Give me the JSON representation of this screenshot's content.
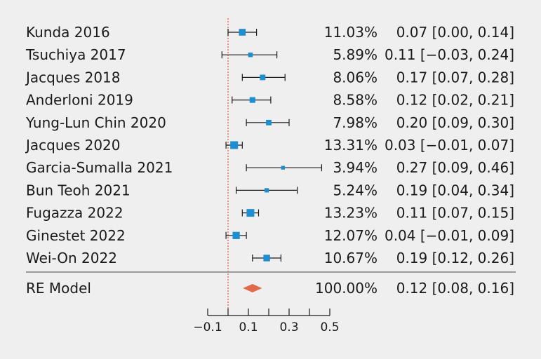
{
  "chart_data": {
    "type": "forest",
    "x_range": [
      -0.1,
      0.5
    ],
    "reference_line": 0,
    "axis_ticks": [
      -0.1,
      0.1,
      0.3,
      0.5
    ],
    "axis_tick_labels": [
      "−0.1",
      "0.1",
      "0.3",
      "0.5"
    ],
    "colors": {
      "study_marker": "#1b8fd2",
      "pooled_diamond": "#e06a4a",
      "reference_line": "#e2553b",
      "separator": "#9a9a9a",
      "text": "#1a1a1a"
    },
    "studies": [
      {
        "label": "Kunda 2016",
        "weight_label": "11.03%",
        "ci_label": "0.07 [0.00, 0.14]",
        "weight": 11.03,
        "estimate": 0.07,
        "lower": 0.0,
        "upper": 0.14
      },
      {
        "label": "Tsuchiya 2017",
        "weight_label": "5.89%",
        "ci_label": "0.11 [−0.03, 0.24]",
        "weight": 5.89,
        "estimate": 0.11,
        "lower": -0.03,
        "upper": 0.24
      },
      {
        "label": "Jacques 2018",
        "weight_label": "8.06%",
        "ci_label": "0.17 [0.07, 0.28]",
        "weight": 8.06,
        "estimate": 0.17,
        "lower": 0.07,
        "upper": 0.28
      },
      {
        "label": "Anderloni 2019",
        "weight_label": "8.58%",
        "ci_label": "0.12 [0.02, 0.21]",
        "weight": 8.58,
        "estimate": 0.12,
        "lower": 0.02,
        "upper": 0.21
      },
      {
        "label": "Yung-Lun Chin 2020",
        "weight_label": "7.98%",
        "ci_label": "0.20 [0.09, 0.30]",
        "weight": 7.98,
        "estimate": 0.2,
        "lower": 0.09,
        "upper": 0.3
      },
      {
        "label": "Jacques 2020",
        "weight_label": "13.31%",
        "ci_label": "0.03 [−0.01, 0.07]",
        "weight": 13.31,
        "estimate": 0.03,
        "lower": -0.01,
        "upper": 0.07
      },
      {
        "label": "Garcia-Sumalla 2021",
        "weight_label": "3.94%",
        "ci_label": "0.27 [0.09, 0.46]",
        "weight": 3.94,
        "estimate": 0.27,
        "lower": 0.09,
        "upper": 0.46
      },
      {
        "label": "Bun Teoh 2021",
        "weight_label": "5.24%",
        "ci_label": "0.19 [0.04, 0.34]",
        "weight": 5.24,
        "estimate": 0.19,
        "lower": 0.04,
        "upper": 0.34
      },
      {
        "label": "Fugazza 2022",
        "weight_label": "13.23%",
        "ci_label": "0.11 [0.07, 0.15]",
        "weight": 13.23,
        "estimate": 0.11,
        "lower": 0.07,
        "upper": 0.15
      },
      {
        "label": "Ginestet 2022",
        "weight_label": "12.07%",
        "ci_label": "0.04 [−0.01, 0.09]",
        "weight": 12.07,
        "estimate": 0.04,
        "lower": -0.01,
        "upper": 0.09
      },
      {
        "label": "Wei-On 2022",
        "weight_label": "10.67%",
        "ci_label": "0.19 [0.12, 0.26]",
        "weight": 10.67,
        "estimate": 0.19,
        "lower": 0.12,
        "upper": 0.26
      }
    ],
    "pooled": {
      "label": "RE Model",
      "weight_label": "100.00%",
      "ci_label": "0.12 [0.08, 0.16]",
      "estimate": 0.12,
      "lower": 0.08,
      "upper": 0.16
    }
  }
}
